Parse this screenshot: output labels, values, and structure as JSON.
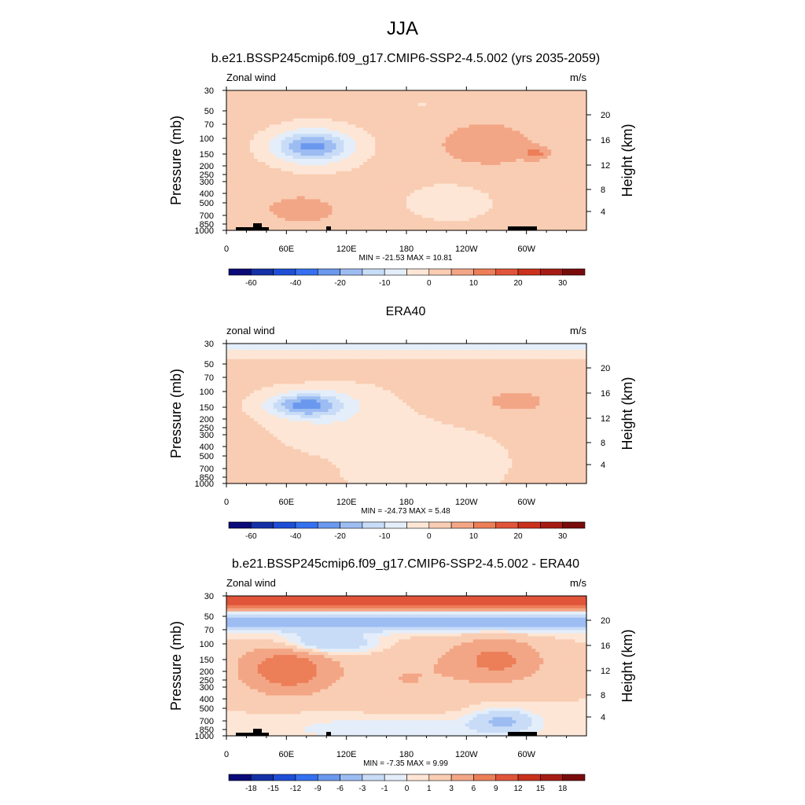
{
  "page_title": "JJA",
  "colors": {
    "land": "#000000",
    "axis": "#000000",
    "mean_scale": [
      "#0a0a78",
      "#1430a6",
      "#1e4ed6",
      "#3470f0",
      "#6a98ee",
      "#9cbcf2",
      "#c8dcf7",
      "#e4eefa",
      "#fde6d6",
      "#f9cdb3",
      "#f3a686",
      "#ec7e58",
      "#e0543a",
      "#c9311c",
      "#a61c14",
      "#780b0b"
    ],
    "diff_scale": [
      "#0a0a78",
      "#1430a6",
      "#1e4ed6",
      "#3470f0",
      "#6a98ee",
      "#9cbcf2",
      "#c8dcf7",
      "#e4eefa",
      "#fde6d6",
      "#f9cdb3",
      "#f3a686",
      "#ec7e58",
      "#e0543a",
      "#c9311c",
      "#a61c14",
      "#780b0b"
    ]
  },
  "chart_data": [
    {
      "type": "heatmap",
      "title": "b.e21.BSSP245cmip6.f09_g17.CMIP6-SSP2-4.5.002 (yrs 2035-2059)",
      "left_label": "Zonal wind",
      "units": "m/s",
      "ylabel": "Pressure (mb)",
      "y2label": "Height (km)",
      "x_ticks": [
        "0",
        "60E",
        "120E",
        "180",
        "120W",
        "60W"
      ],
      "y_ticks": [
        "30",
        "50",
        "70",
        "100",
        "150",
        "200",
        "250",
        "300",
        "400",
        "500",
        "700",
        "850",
        "1000"
      ],
      "y2_ticks": [
        "20",
        "16",
        "12",
        "8",
        "4"
      ],
      "stats": "MIN = -21.53  MAX =  10.81",
      "colorbar_labels": [
        "-60",
        "-40",
        "-20",
        "-10",
        "0",
        "10",
        "20",
        "30"
      ],
      "min": -21.53,
      "max": 10.81,
      "show_land": true
    },
    {
      "type": "heatmap",
      "title": "ERA40",
      "left_label": "zonal wind",
      "units": "m/s",
      "ylabel": "Pressure (mb)",
      "y2label": "Height (km)",
      "x_ticks": [
        "0",
        "60E",
        "120E",
        "180",
        "120W",
        "60W"
      ],
      "y_ticks": [
        "30",
        "50",
        "70",
        "100",
        "150",
        "200",
        "250",
        "300",
        "400",
        "500",
        "700",
        "850",
        "1000"
      ],
      "y2_ticks": [
        "20",
        "16",
        "12",
        "8",
        "4"
      ],
      "stats": "MIN = -24.73  MAX =   5.48",
      "colorbar_labels": [
        "-60",
        "-40",
        "-20",
        "-10",
        "0",
        "10",
        "20",
        "30"
      ],
      "min": -24.73,
      "max": 5.48,
      "show_land": false
    },
    {
      "type": "heatmap",
      "title": "b.e21.BSSP245cmip6.f09_g17.CMIP6-SSP2-4.5.002 - ERA40",
      "left_label": "Zonal wind",
      "units": "m/s",
      "ylabel": "Pressure (mb)",
      "y2label": "Height (km)",
      "x_ticks": [
        "0",
        "60E",
        "120E",
        "180",
        "120W",
        "60W"
      ],
      "y_ticks": [
        "30",
        "50",
        "70",
        "100",
        "150",
        "200",
        "250",
        "300",
        "400",
        "500",
        "700",
        "850",
        "1000"
      ],
      "y2_ticks": [
        "20",
        "16",
        "12",
        "8",
        "4"
      ],
      "stats": "MIN =  -7.35  MAX =   9.99",
      "colorbar_labels": [
        "-18",
        "-15",
        "-12",
        "-9",
        "-6",
        "-3",
        "-1",
        "0",
        "1",
        "3",
        "6",
        "9",
        "12",
        "15",
        "18"
      ],
      "min": -7.35,
      "max": 9.99,
      "show_land": true
    }
  ]
}
